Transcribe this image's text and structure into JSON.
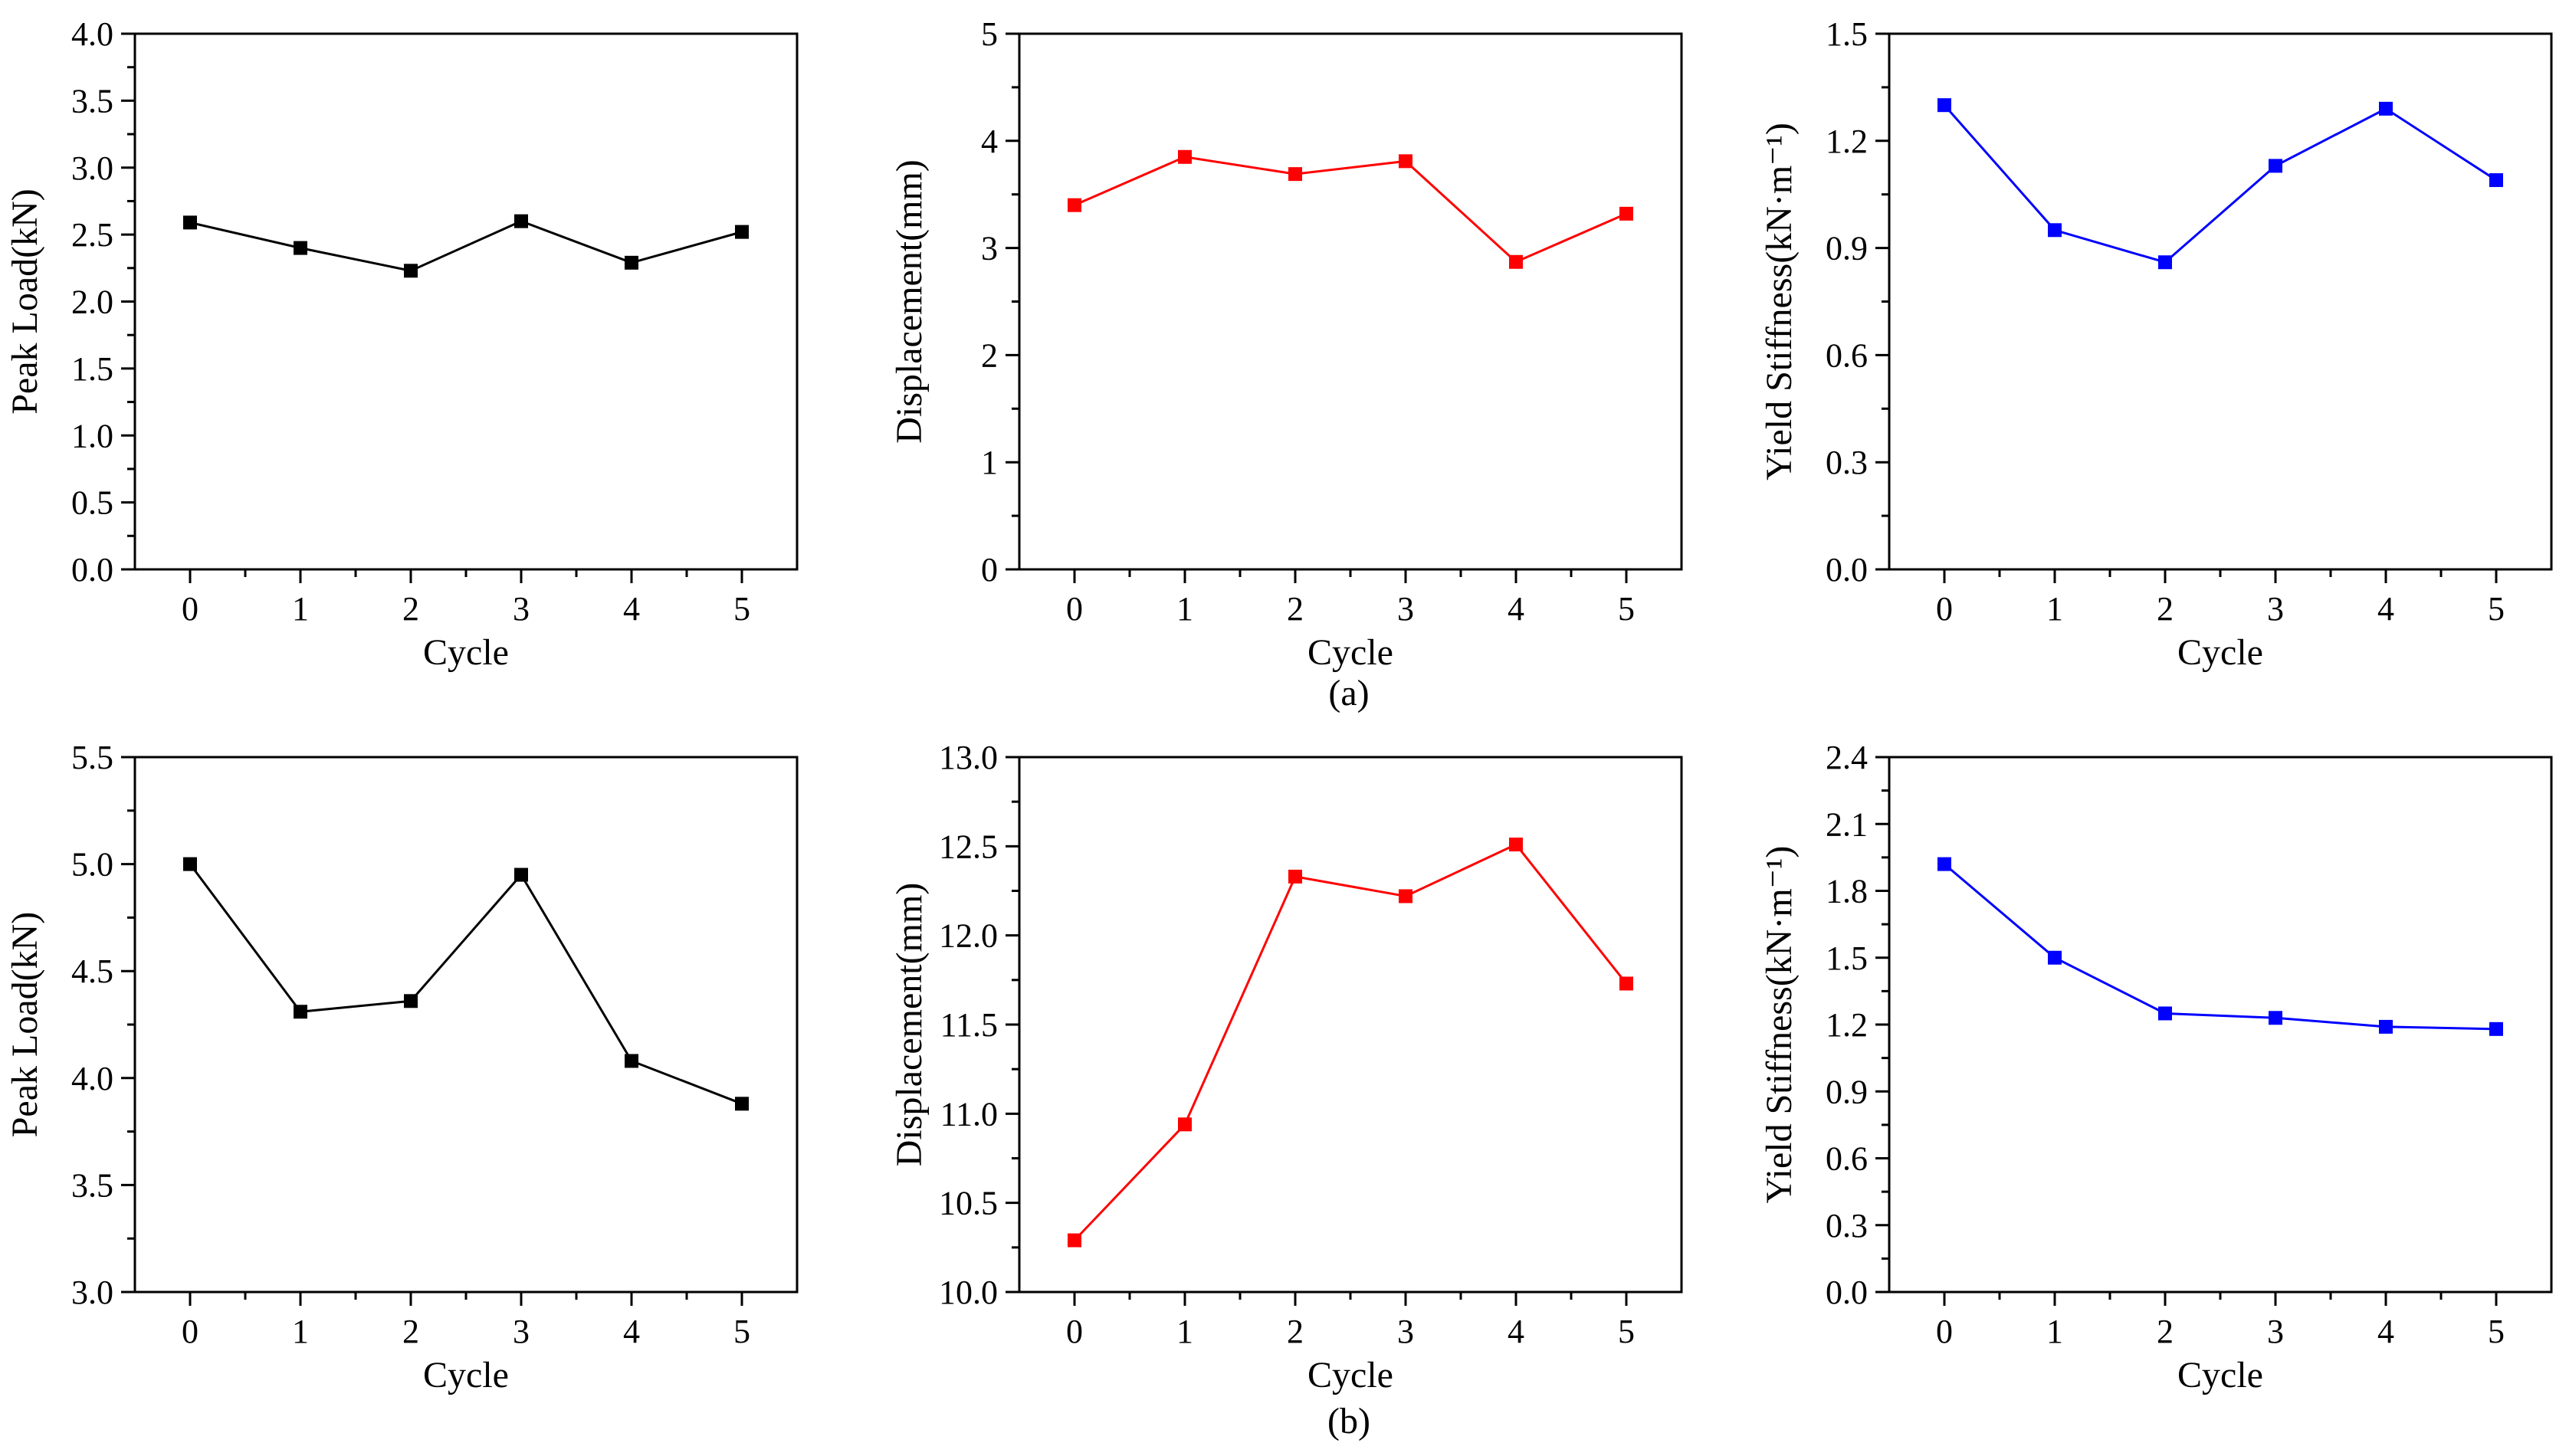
{
  "figure": {
    "captions": [
      "(a)",
      "(b)"
    ]
  },
  "chart_data": [
    {
      "type": "line",
      "panel": "a",
      "xlabel": "Cycle",
      "ylabel": "Peak Load(kN)",
      "x": [
        0,
        1,
        2,
        3,
        4,
        5
      ],
      "xlim": [
        -0.5,
        5.5
      ],
      "ylim": [
        0,
        4.0
      ],
      "yticks": [
        "0.0",
        "0.5",
        "1.0",
        "1.5",
        "2.0",
        "2.5",
        "3.0",
        "3.5",
        "4.0"
      ],
      "series": [
        {
          "values": [
            2.59,
            2.4,
            2.23,
            2.6,
            2.29,
            2.52
          ],
          "color": "#000000",
          "marker": "square"
        }
      ],
      "grid": false
    },
    {
      "type": "line",
      "panel": "a",
      "xlabel": "Cycle",
      "ylabel": "Displacement(mm)",
      "x": [
        0,
        1,
        2,
        3,
        4,
        5
      ],
      "xlim": [
        -0.5,
        5.5
      ],
      "ylim": [
        0,
        5
      ],
      "yticks": [
        "0",
        "1",
        "2",
        "3",
        "4",
        "5"
      ],
      "series": [
        {
          "values": [
            3.4,
            3.85,
            3.69,
            3.81,
            2.87,
            3.32
          ],
          "color": "#ff0000",
          "marker": "square"
        }
      ],
      "grid": false
    },
    {
      "type": "line",
      "panel": "a",
      "xlabel": "Cycle",
      "ylabel": "Yield Stiffness(kN·m⁻¹)",
      "x": [
        0,
        1,
        2,
        3,
        4,
        5
      ],
      "xlim": [
        -0.5,
        5.5
      ],
      "ylim": [
        0,
        1.5
      ],
      "yticks": [
        "0.0",
        "0.3",
        "0.6",
        "0.9",
        "1.2",
        "1.5"
      ],
      "series": [
        {
          "values": [
            1.3,
            0.95,
            0.86,
            1.13,
            1.29,
            1.09
          ],
          "color": "#0000ff",
          "marker": "square"
        }
      ],
      "grid": false
    },
    {
      "type": "line",
      "panel": "b",
      "xlabel": "Cycle",
      "ylabel": "Peak Load(kN)",
      "x": [
        0,
        1,
        2,
        3,
        4,
        5
      ],
      "xlim": [
        -0.5,
        5.5
      ],
      "ylim": [
        3.0,
        5.5
      ],
      "yticks": [
        "3.0",
        "3.5",
        "4.0",
        "4.5",
        "5.0",
        "5.5"
      ],
      "series": [
        {
          "values": [
            5.0,
            4.31,
            4.36,
            4.95,
            4.08,
            3.88
          ],
          "color": "#000000",
          "marker": "square"
        }
      ],
      "grid": false
    },
    {
      "type": "line",
      "panel": "b",
      "xlabel": "Cycle",
      "ylabel": "Displacement(mm)",
      "x": [
        0,
        1,
        2,
        3,
        4,
        5
      ],
      "xlim": [
        -0.5,
        5.5
      ],
      "ylim": [
        10.0,
        13.0
      ],
      "yticks": [
        "10.0",
        "10.5",
        "11.0",
        "11.5",
        "12.0",
        "12.5",
        "13.0"
      ],
      "series": [
        {
          "values": [
            10.29,
            10.94,
            12.33,
            12.22,
            12.51,
            11.73
          ],
          "color": "#ff0000",
          "marker": "square"
        }
      ],
      "grid": false
    },
    {
      "type": "line",
      "panel": "b",
      "xlabel": "Cycle",
      "ylabel": "Yield Stiffness(kN·m⁻¹)",
      "x": [
        0,
        1,
        2,
        3,
        4,
        5
      ],
      "xlim": [
        -0.5,
        5.5
      ],
      "ylim": [
        0,
        2.4
      ],
      "yticks": [
        "0.0",
        "0.3",
        "0.6",
        "0.9",
        "1.2",
        "1.5",
        "1.8",
        "2.1",
        "2.4"
      ],
      "series": [
        {
          "values": [
            1.92,
            1.5,
            1.25,
            1.23,
            1.19,
            1.18
          ],
          "color": "#0000ff",
          "marker": "square"
        }
      ],
      "grid": false
    }
  ]
}
